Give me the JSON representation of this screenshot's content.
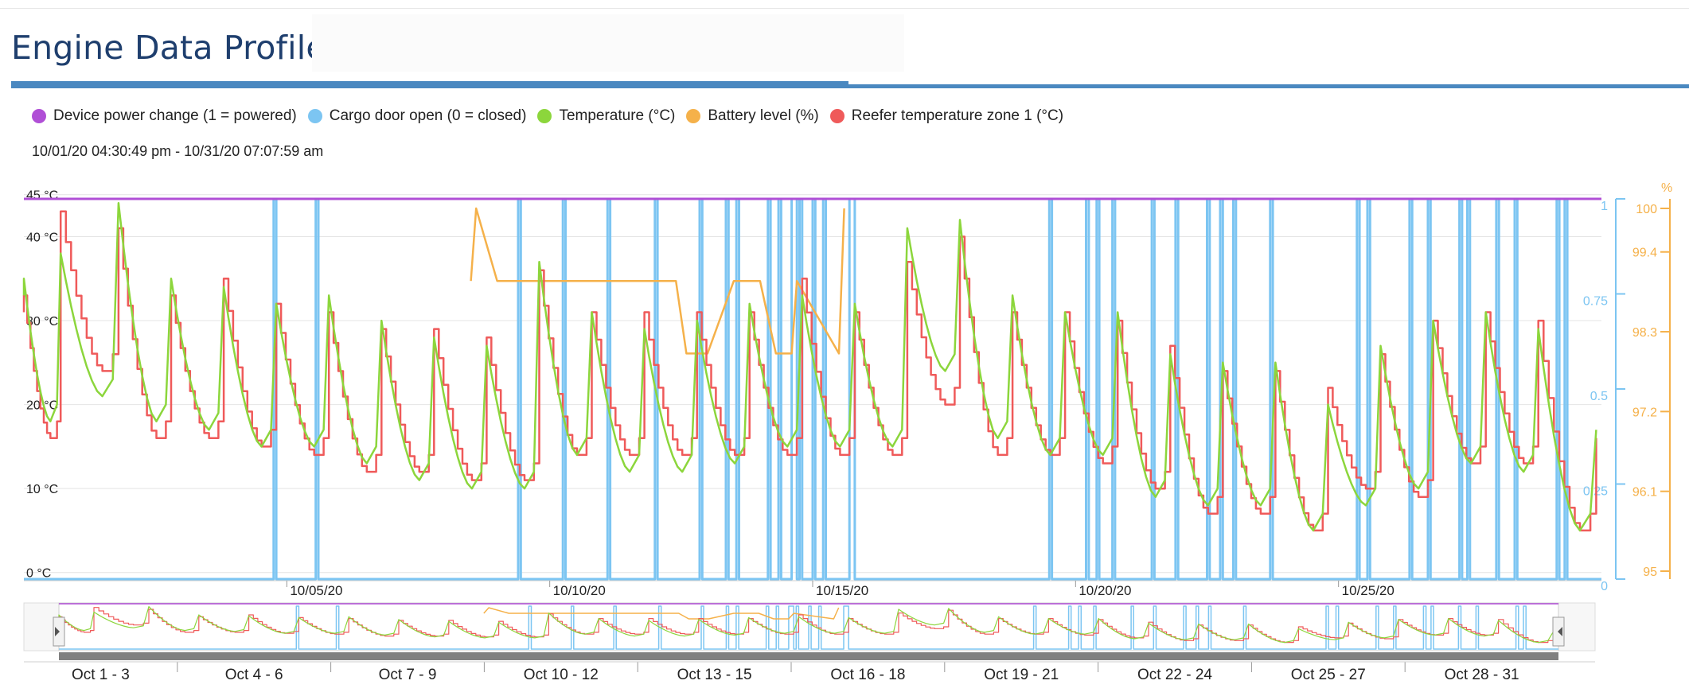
{
  "page": {
    "title": "Engine Data Profile",
    "date_range": "10/01/20 04:30:49 pm - 10/31/20 07:07:59 am"
  },
  "colors": {
    "power": "#b04fd6",
    "door": "#7cc5f2",
    "temperature": "#8cd63c",
    "battery": "#f5b14a",
    "reefer": "#ef5a5a",
    "title": "#1f3f6e",
    "accent_bar": "#4a88c0"
  },
  "chart_data": {
    "type": "line",
    "title": "",
    "legend": [
      {
        "label": "Device power change (1 = powered)",
        "color": "#b04fd6"
      },
      {
        "label": "Cargo door open (0 = closed)",
        "color": "#7cc5f2"
      },
      {
        "label": "Temperature (°C)",
        "color": "#8cd63c"
      },
      {
        "label": "Battery level (%)",
        "color": "#f5b14a"
      },
      {
        "label": "Reefer temperature zone 1 (°C)",
        "color": "#ef5a5a"
      }
    ],
    "legend_position": "top-left",
    "x_axis": {
      "unit": "day of October 2020",
      "range": [
        1.0,
        31.0
      ],
      "ticks": [
        {
          "label": "10/05/20",
          "day": 6
        },
        {
          "label": "10/10/20",
          "day": 11
        },
        {
          "label": "10/15/20",
          "day": 16
        },
        {
          "label": "10/20/20",
          "day": 21
        },
        {
          "label": "10/25/20",
          "day": 26
        }
      ]
    },
    "y_axis_temperature": {
      "unit": "°C",
      "range": [
        -0.5,
        44.5
      ],
      "ticks": [
        "0 °C",
        "10 °C",
        "20 °C",
        "30 °C",
        "40 °C",
        "45 °C"
      ],
      "tick_values": [
        0,
        10,
        20,
        30,
        40,
        45
      ]
    },
    "y_axis_door": {
      "range": [
        0,
        1
      ],
      "ticks": [
        "0",
        "0.25",
        "0.5",
        "0.75",
        "1"
      ],
      "tick_values": [
        0,
        0.25,
        0.5,
        0.75,
        1
      ]
    },
    "y_axis_battery": {
      "unit_label": "%",
      "range": [
        95,
        100
      ],
      "ticks": [
        "95",
        "96.1",
        "97.2",
        "98.3",
        "99.4",
        "100"
      ],
      "tick_values": [
        95,
        96.1,
        97.2,
        98.3,
        99.4,
        100
      ]
    },
    "grid": true,
    "series": [
      {
        "name": "Device power change (1 = powered)",
        "axis": "door",
        "x": [
          1.0,
          31.0
        ],
        "y": [
          1,
          1
        ]
      },
      {
        "name": "Cargo door open (0 = closed)",
        "axis": "door",
        "open_intervals": [
          [
            5.75,
            5.8
          ],
          [
            6.55,
            6.6
          ],
          [
            10.4,
            10.45
          ],
          [
            11.25,
            11.3
          ],
          [
            12.1,
            12.15
          ],
          [
            13.0,
            13.05
          ],
          [
            13.85,
            13.9
          ],
          [
            14.35,
            14.4
          ],
          [
            14.55,
            14.6
          ],
          [
            15.15,
            15.2
          ],
          [
            15.35,
            15.4
          ],
          [
            15.6,
            15.7
          ],
          [
            15.75,
            15.8
          ],
          [
            16.0,
            16.05
          ],
          [
            16.2,
            16.25
          ],
          [
            16.7,
            16.8
          ],
          [
            20.5,
            20.55
          ],
          [
            21.2,
            21.25
          ],
          [
            21.4,
            21.45
          ],
          [
            21.7,
            21.75
          ],
          [
            22.45,
            22.5
          ],
          [
            22.9,
            22.95
          ],
          [
            23.5,
            23.55
          ],
          [
            23.75,
            23.8
          ],
          [
            24.0,
            24.05
          ],
          [
            24.7,
            24.75
          ],
          [
            26.35,
            26.4
          ],
          [
            26.55,
            26.6
          ],
          [
            27.35,
            27.4
          ],
          [
            27.7,
            27.75
          ],
          [
            28.3,
            28.35
          ],
          [
            28.45,
            28.5
          ],
          [
            29.0,
            29.05
          ],
          [
            29.35,
            29.4
          ],
          [
            30.15,
            30.2
          ],
          [
            30.3,
            30.35
          ]
        ]
      },
      {
        "name": "Temperature (°C)",
        "axis": "temperature",
        "peaks": [
          [
            1.0,
            35
          ],
          [
            1.7,
            38
          ],
          [
            2.8,
            44
          ],
          [
            3.8,
            35
          ],
          [
            4.8,
            34
          ],
          [
            5.8,
            32
          ],
          [
            6.8,
            33
          ],
          [
            7.8,
            30
          ],
          [
            8.8,
            28
          ],
          [
            9.8,
            27
          ],
          [
            10.8,
            37
          ],
          [
            11.8,
            31
          ],
          [
            12.8,
            29
          ],
          [
            13.8,
            30
          ],
          [
            14.8,
            32
          ],
          [
            15.8,
            33
          ],
          [
            16.8,
            32
          ],
          [
            17.8,
            41
          ],
          [
            18.8,
            42
          ],
          [
            19.8,
            33
          ],
          [
            20.8,
            31
          ],
          [
            21.8,
            31
          ],
          [
            22.8,
            26
          ],
          [
            23.8,
            25
          ],
          [
            24.8,
            25
          ],
          [
            25.8,
            20
          ],
          [
            26.8,
            27
          ],
          [
            27.8,
            30
          ],
          [
            28.8,
            31
          ],
          [
            29.8,
            29
          ],
          [
            30.9,
            17
          ]
        ]
      },
      {
        "name": "Battery level (%)",
        "axis": "battery",
        "x": [
          9.5,
          9.6,
          10.0,
          10.6,
          11.6,
          13.4,
          13.6,
          14.0,
          14.5,
          15.0,
          15.3,
          15.6,
          15.7,
          16.5,
          16.6
        ],
        "y": [
          99.0,
          100,
          99.0,
          99.0,
          99.0,
          99.0,
          98.0,
          98.0,
          99.0,
          99.0,
          98.0,
          98.0,
          99.0,
          98.0,
          100
        ]
      },
      {
        "name": "Reefer temperature zone 1 (°C)",
        "axis": "temperature",
        "peaks": [
          [
            1.0,
            33
          ],
          [
            1.7,
            43
          ],
          [
            2.8,
            41
          ],
          [
            3.8,
            33
          ],
          [
            4.8,
            35
          ],
          [
            5.8,
            32
          ],
          [
            6.8,
            31
          ],
          [
            7.8,
            29
          ],
          [
            8.8,
            29
          ],
          [
            9.8,
            28
          ],
          [
            10.8,
            36
          ],
          [
            11.8,
            31
          ],
          [
            12.8,
            31
          ],
          [
            13.8,
            31
          ],
          [
            14.8,
            31
          ],
          [
            15.8,
            35
          ],
          [
            16.8,
            31
          ],
          [
            17.8,
            37
          ],
          [
            18.8,
            40
          ],
          [
            19.8,
            31
          ],
          [
            20.8,
            31
          ],
          [
            21.8,
            30
          ],
          [
            22.8,
            27
          ],
          [
            23.8,
            24
          ],
          [
            24.8,
            24
          ],
          [
            25.8,
            22
          ],
          [
            26.8,
            26
          ],
          [
            27.8,
            30
          ],
          [
            28.8,
            31
          ],
          [
            29.8,
            30
          ],
          [
            30.9,
            16
          ]
        ]
      }
    ],
    "navigator": {
      "labels": [
        "Oct 1 - 3",
        "Oct 4 - 6",
        "Oct 7 - 9",
        "Oct 10 - 12",
        "Oct 13 - 15",
        "Oct 16 - 18",
        "Oct 19 - 21",
        "Oct 22 - 24",
        "Oct 25 - 27",
        "Oct 28 - 31"
      ]
    }
  }
}
